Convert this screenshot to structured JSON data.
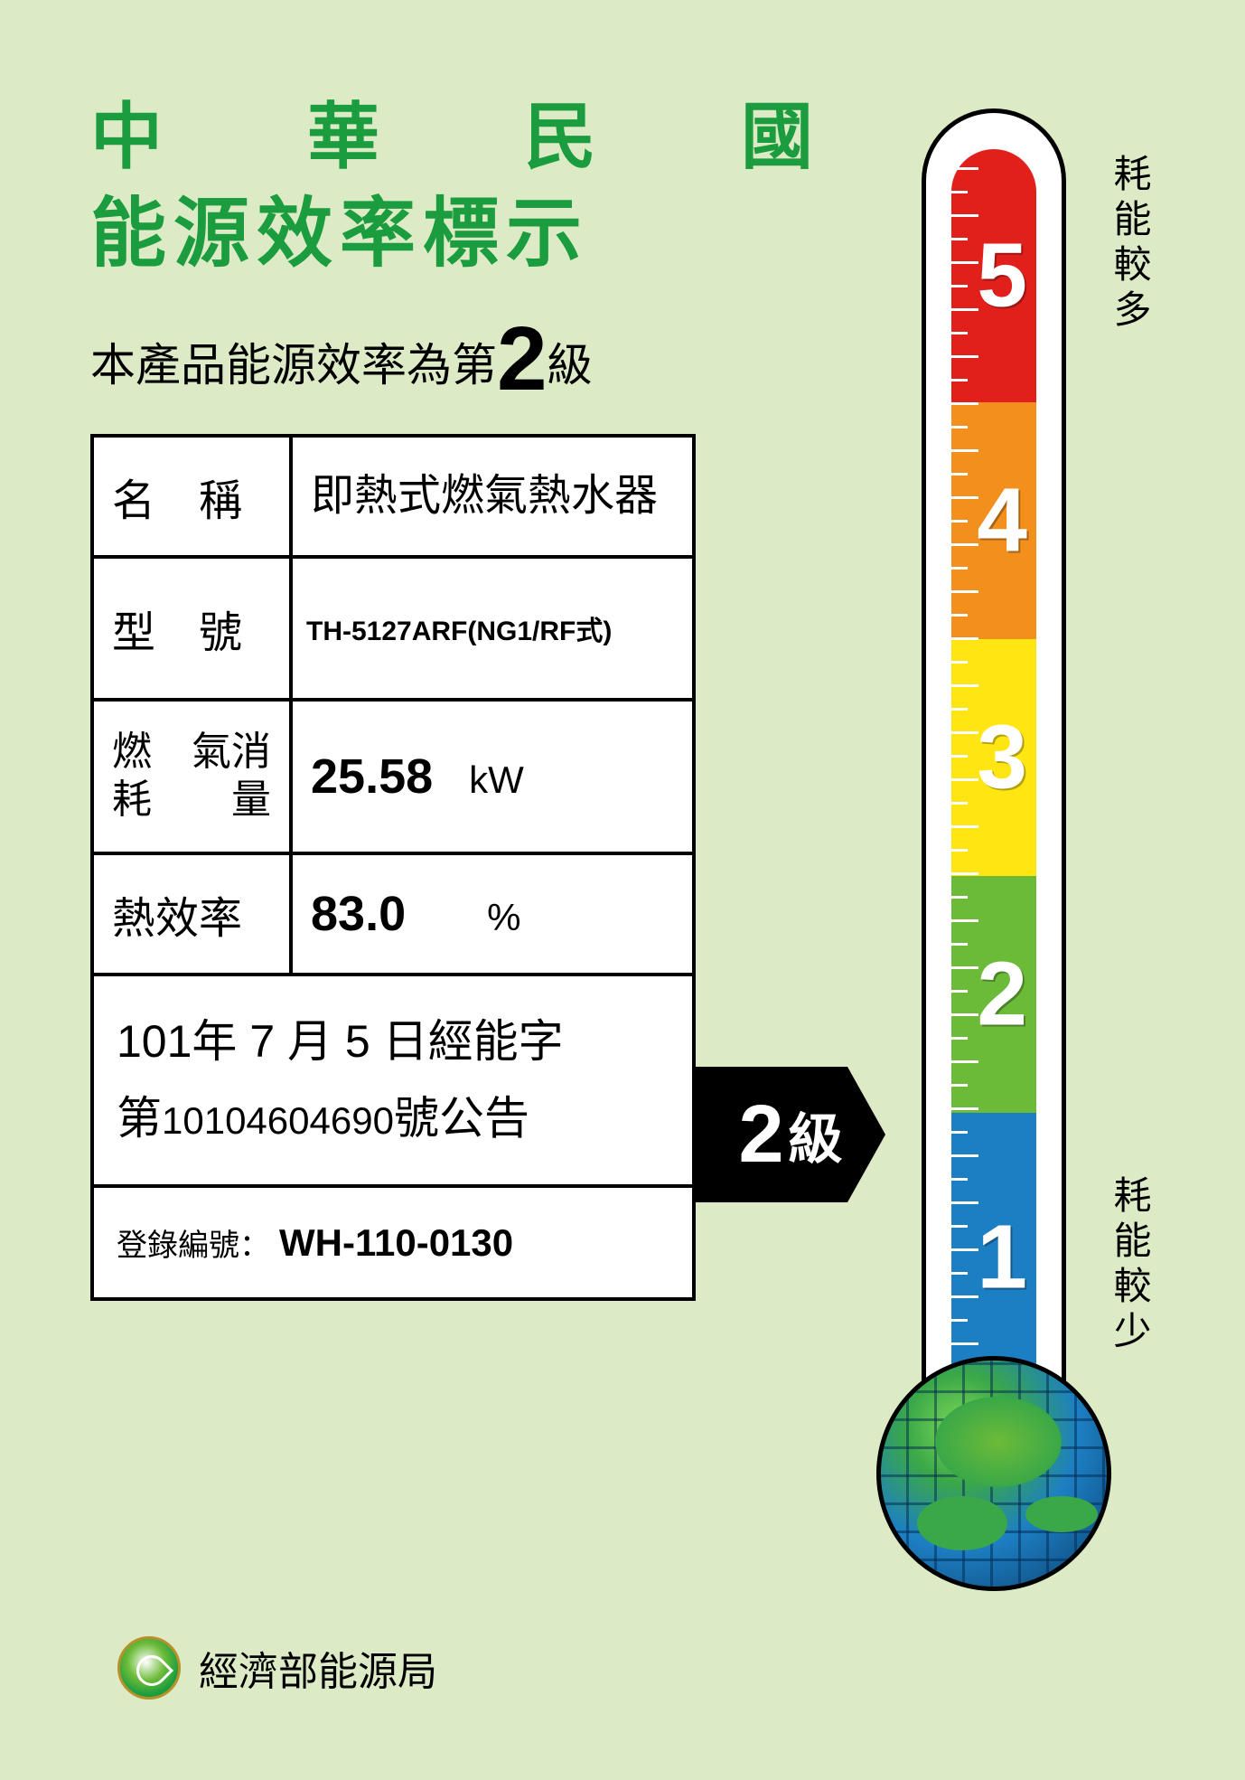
{
  "title_line1": "中　華　民　國",
  "title_line2": "能源效率標示",
  "subtitle_prefix": "本產品能源效率為第",
  "subtitle_level": "2",
  "subtitle_suffix": "級",
  "table": {
    "name_label": "名　稱",
    "name_value": "即熱式燃氣熱水器",
    "model_label": "型　號",
    "model_value": "TH-5127ARF(NG1/RF式)",
    "gas_label": "燃　氣消耗量",
    "gas_value": "25.58",
    "gas_unit": "kW",
    "eff_label": "熱效率",
    "eff_value": "83.0",
    "eff_unit": "%",
    "announce_line1a": "101年 7 月 5 日經能字",
    "announce_line2a": "第",
    "announce_num": "10104604690",
    "announce_line2b": "號公告",
    "reg_label": "登錄編號：",
    "reg_value": "WH-110-0130"
  },
  "pointer_level": "2",
  "pointer_suffix": "級",
  "thermometer": {
    "segments": [
      {
        "level": "5",
        "color": "#e2201b"
      },
      {
        "level": "4",
        "color": "#f28f1d"
      },
      {
        "level": "3",
        "color": "#ffe612"
      },
      {
        "level": "2",
        "color": "#6cbb38"
      },
      {
        "level": "1",
        "color": "#1d7fc3"
      }
    ],
    "label_top": "耗能較多",
    "label_bottom": "耗能較少"
  },
  "footer_org": "經濟部能源局",
  "colors": {
    "background": "#dcebc5",
    "title_green": "#1a9c3f",
    "border": "#000000"
  }
}
